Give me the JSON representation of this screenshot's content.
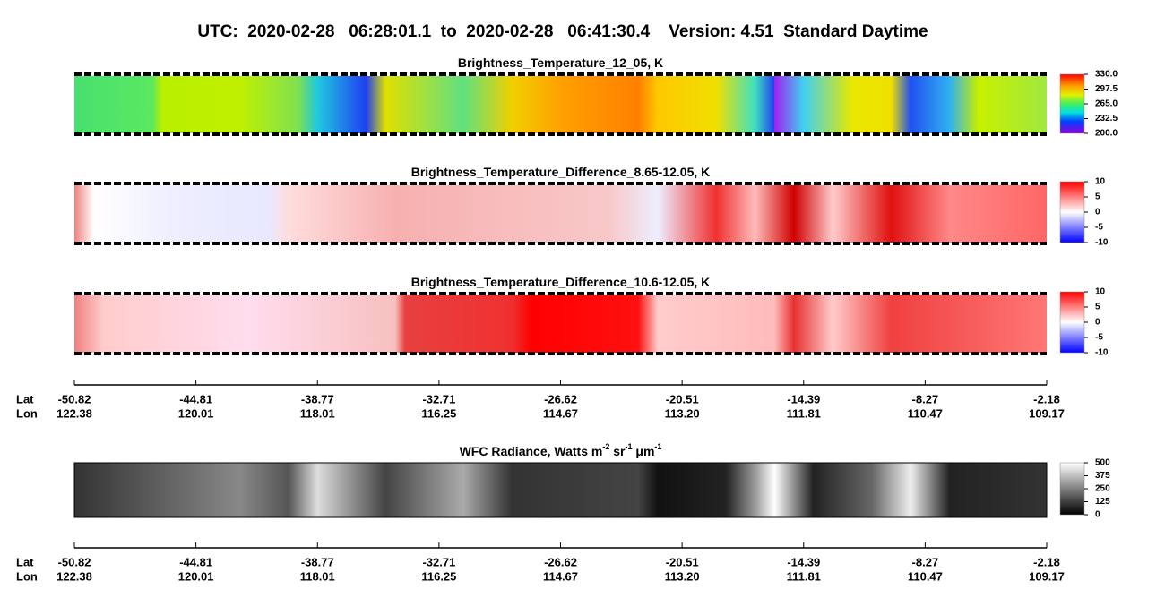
{
  "title": "UTC:  2020-02-28   06:28:01.1  to  2020-02-28   06:41:30.4    Version: 4.51  Standard Daytime",
  "panels": [
    {
      "title_parts": [
        {
          "text": "Brightness_Temperature_12_05, K"
        }
      ],
      "colorbar": {
        "lim": [
          200,
          330
        ],
        "ticks": [
          {
            "value": 330,
            "label": "330.0"
          },
          297.5,
          {
            "value": 265,
            "label": "265.0"
          },
          232.5,
          {
            "value": 200,
            "label": "200.0"
          }
        ]
      }
    },
    {
      "title_parts": [
        {
          "text": "Brightness_Temperature_Difference_8.65-12.05, K"
        }
      ],
      "colorbar": {
        "lim": [
          -10,
          10
        ],
        "ticks": [
          10,
          5,
          0,
          -5,
          -10
        ]
      }
    },
    {
      "title_parts": [
        {
          "text": "Brightness_Temperature_Difference_10.6-12.05, K"
        }
      ],
      "colorbar": {
        "lim": [
          -10,
          10
        ],
        "ticks": [
          10,
          5,
          0,
          -5,
          -10
        ]
      }
    },
    {
      "title_parts": [
        {
          "text": "WFC Radiance, Watts m"
        },
        {
          "text": "-2",
          "sup": true
        },
        {
          "text": " sr"
        },
        {
          "text": "-1",
          "sup": true
        },
        {
          "text": " μm"
        },
        {
          "text": "-1",
          "sup": true
        }
      ],
      "colorbar": {
        "lim": [
          0,
          500
        ],
        "ticks": [
          500,
          375,
          250,
          125,
          0
        ]
      }
    }
  ],
  "axes": [
    {
      "rows": [
        {
          "label": "Lat",
          "ticks": [
            -50.82,
            -44.81,
            -38.77,
            -32.71,
            -26.62,
            -20.51,
            -14.39,
            -8.27,
            -2.18
          ]
        },
        {
          "label": "Lon",
          "ticks": [
            122.38,
            120.01,
            118.01,
            116.25,
            114.67,
            {
              "value": 113.2,
              "label": "113.20"
            },
            111.81,
            110.47,
            109.17
          ]
        }
      ]
    },
    {
      "rows": [
        {
          "label": "Lat",
          "ticks": [
            -50.82,
            -44.81,
            -38.77,
            -32.71,
            -26.62,
            -20.51,
            -14.39,
            -8.27,
            -2.18
          ]
        },
        {
          "label": "Lon",
          "ticks": [
            122.38,
            120.01,
            118.01,
            116.25,
            114.67,
            {
              "value": 113.2,
              "label": "113.20"
            },
            111.81,
            110.47,
            109.17
          ]
        }
      ]
    }
  ]
}
